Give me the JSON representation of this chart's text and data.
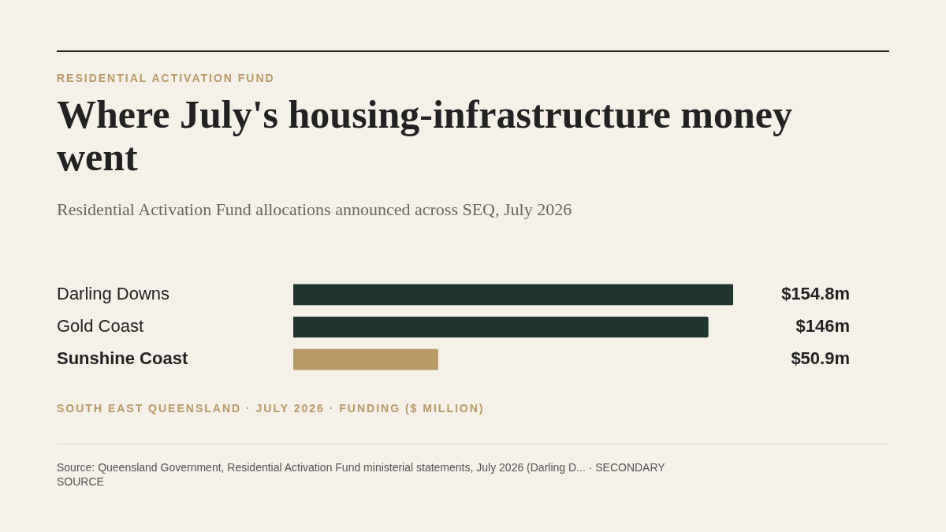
{
  "chart_data": {
    "type": "bar",
    "orientation": "horizontal",
    "title": "Where July's housing-infrastructure money went",
    "subtitle": "Residential Activation Fund allocations announced across SEQ, July 2026",
    "xlabel": "SOUTH EAST QUEENSLAND · JULY 2026 · FUNDING ($ MILLION)",
    "annotations": [
      "RESIDENTIAL ACTIVATION FUND",
      "Source: Queensland Government, Residential Activation Fund ministerial statements, July 2026 (Darling D... · SECONDARY SOURCE"
    ],
    "categories": [
      "Darling Downs",
      "Gold Coast",
      "Sunshine Coast"
    ],
    "values": [
      154.8,
      146,
      50.9
    ],
    "colors": [
      "#1f3630",
      "#1f3630",
      "#b89a68"
    ],
    "value_labels": [
      "$154.8m",
      "$146m",
      "$50.9m"
    ],
    "grid": false,
    "legend": false
  }
}
